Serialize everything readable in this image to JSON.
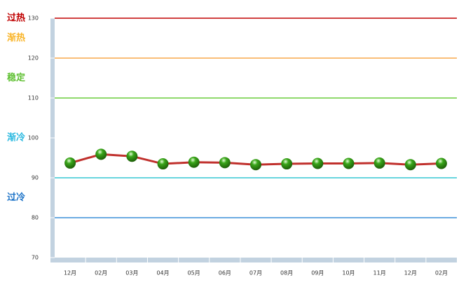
{
  "chart_data": {
    "type": "line",
    "categories": [
      "12月",
      "02月",
      "03月",
      "04月",
      "05月",
      "06月",
      "07月",
      "08月",
      "09月",
      "10月",
      "11月",
      "12月",
      "02月"
    ],
    "values": [
      93.7,
      95.9,
      95.4,
      93.5,
      93.9,
      93.8,
      93.3,
      93.5,
      93.6,
      93.6,
      93.7,
      93.3,
      93.6
    ],
    "color": "#c0302c",
    "marker_color": "#3aa61a",
    "ylim": [
      70,
      130
    ],
    "yticks": [
      70,
      80,
      90,
      100,
      110,
      120,
      130
    ],
    "reference_lines": [
      {
        "value": 130,
        "color": "#c00000"
      },
      {
        "value": 120,
        "color": "#f9a94b"
      },
      {
        "value": 110,
        "color": "#6cce3c"
      },
      {
        "value": 90,
        "color": "#36c7d4"
      },
      {
        "value": 80,
        "color": "#3c8fd8"
      }
    ],
    "zone_labels": [
      {
        "label": "过热",
        "color": "#c00000"
      },
      {
        "label": "渐热",
        "color": "#f9b52a"
      },
      {
        "label": "稳定",
        "color": "#5fc032"
      },
      {
        "label": "渐冷",
        "color": "#2bb9e0"
      },
      {
        "label": "过冷",
        "color": "#1e74c8"
      }
    ]
  }
}
